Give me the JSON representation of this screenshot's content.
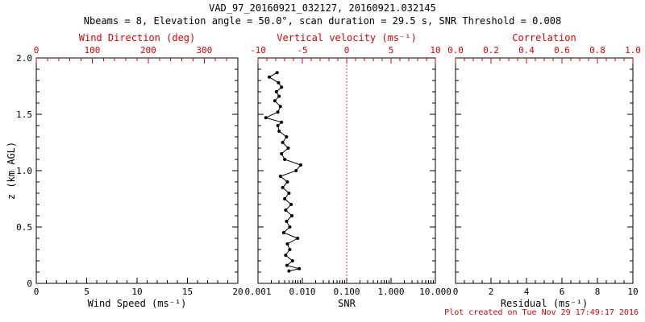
{
  "header": {
    "title": "VAD_97_20160921_032127, 20160921.032145",
    "subtitle": "Nbeams = 8, Elevation angle = 50.0°, scan duration = 29.5 s, SNR Threshold = 0.008"
  },
  "footer": {
    "text": "Plot created on Tue Nov 29 17:49:17 2016"
  },
  "colors": {
    "accent_red": "#e00000",
    "axis_black": "#000000",
    "data_black": "#000000",
    "background": "#ffffff"
  },
  "y_axis": {
    "label": "z (km AGL)",
    "range": [
      0,
      2
    ],
    "tick_values": [
      0,
      0.5,
      1,
      1.5,
      2
    ],
    "tick_labels": [
      "0",
      "0.5",
      "1.0",
      "1.5",
      "2.0"
    ],
    "minor_step": 0.1
  },
  "chart_data": [
    {
      "type": "scatter",
      "panel": "wind",
      "bottom_axis": {
        "label": "Wind Speed (ms⁻¹)",
        "scale": "linear",
        "range": [
          0,
          20
        ],
        "tick_values": [
          0,
          5,
          10,
          15,
          20
        ],
        "tick_labels": [
          "0",
          "5",
          "10",
          "15",
          "20"
        ],
        "minor_step": 1
      },
      "top_axis": {
        "label": "Wind Direction (deg)",
        "scale": "linear",
        "range": [
          0,
          360
        ],
        "tick_values": [
          0,
          100,
          200,
          300
        ],
        "tick_labels": [
          "0",
          "100",
          "200",
          "300"
        ],
        "minor_step": 20
      },
      "series": []
    },
    {
      "type": "line",
      "panel": "snr",
      "bottom_axis": {
        "label": "SNR",
        "scale": "log",
        "range": [
          0.001,
          10
        ],
        "tick_values": [
          0.001,
          0.01,
          0.1,
          1,
          10
        ],
        "tick_labels": [
          "0.001",
          "0.010",
          "0.100",
          "1.000",
          "10.000"
        ]
      },
      "top_axis": {
        "label": "Vertical velocity (ms⁻¹)",
        "scale": "linear",
        "range": [
          -10,
          10
        ],
        "tick_values": [
          -10,
          -5,
          0,
          5,
          10
        ],
        "tick_labels": [
          "-10",
          "-5",
          "0",
          "5",
          "10"
        ],
        "minor_step": 1
      },
      "reference_line": {
        "axis": "top",
        "value": 0,
        "style": "dotted",
        "color": "#e00000"
      },
      "series": [
        {
          "name": "snr-profile",
          "point_format": "[snr, z_km_agl]",
          "points": [
            [
              0.005,
              0.11
            ],
            [
              0.0085,
              0.13
            ],
            [
              0.0045,
              0.16
            ],
            [
              0.006,
              0.2
            ],
            [
              0.0042,
              0.25
            ],
            [
              0.0052,
              0.3
            ],
            [
              0.0046,
              0.35
            ],
            [
              0.0078,
              0.4
            ],
            [
              0.0038,
              0.45
            ],
            [
              0.0052,
              0.5
            ],
            [
              0.0044,
              0.55
            ],
            [
              0.0058,
              0.6
            ],
            [
              0.0042,
              0.65
            ],
            [
              0.0056,
              0.7
            ],
            [
              0.004,
              0.75
            ],
            [
              0.005,
              0.8
            ],
            [
              0.0036,
              0.85
            ],
            [
              0.0046,
              0.9
            ],
            [
              0.0032,
              0.95
            ],
            [
              0.0072,
              1.0
            ],
            [
              0.0092,
              1.05
            ],
            [
              0.004,
              1.1
            ],
            [
              0.0034,
              1.15
            ],
            [
              0.0048,
              1.2
            ],
            [
              0.0036,
              1.25
            ],
            [
              0.0044,
              1.3
            ],
            [
              0.003,
              1.35
            ],
            [
              0.0028,
              1.4
            ],
            [
              0.0034,
              1.43
            ],
            [
              0.0015,
              1.47
            ],
            [
              0.0028,
              1.52
            ],
            [
              0.0032,
              1.57
            ],
            [
              0.0024,
              1.62
            ],
            [
              0.003,
              1.66
            ],
            [
              0.0026,
              1.7
            ],
            [
              0.0034,
              1.74
            ],
            [
              0.0029,
              1.78
            ],
            [
              0.0018,
              1.83
            ],
            [
              0.0027,
              1.87
            ]
          ]
        }
      ]
    },
    {
      "type": "scatter",
      "panel": "residual",
      "bottom_axis": {
        "label": "Residual (ms⁻¹)",
        "scale": "linear",
        "range": [
          0,
          10
        ],
        "tick_values": [
          0,
          2,
          4,
          6,
          8,
          10
        ],
        "tick_labels": [
          "0",
          "2",
          "4",
          "6",
          "8",
          "10"
        ],
        "minor_step": 0.5
      },
      "top_axis": {
        "label": "Correlation",
        "scale": "linear",
        "range": [
          0,
          1
        ],
        "tick_values": [
          0,
          0.2,
          0.4,
          0.6,
          0.8,
          1
        ],
        "tick_labels": [
          "0.0",
          "0.2",
          "0.4",
          "0.6",
          "0.8",
          "1.0"
        ],
        "minor_step": 0.05
      },
      "series": []
    }
  ]
}
